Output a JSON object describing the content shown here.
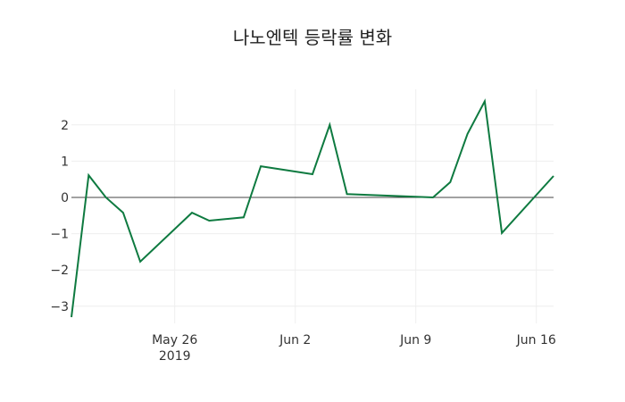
{
  "chart_data": {
    "type": "line",
    "title": "나노엔텍 등락률 변화",
    "xlabel": "",
    "ylabel": "",
    "x": [
      "2019-05-20",
      "2019-05-21",
      "2019-05-22",
      "2019-05-23",
      "2019-05-24",
      "2019-05-27",
      "2019-05-28",
      "2019-05-30",
      "2019-05-31",
      "2019-06-03",
      "2019-06-04",
      "2019-06-05",
      "2019-06-10",
      "2019-06-11",
      "2019-06-12",
      "2019-06-13",
      "2019-06-14",
      "2019-06-17"
    ],
    "series": [
      {
        "name": "등락률",
        "color": "#0e7a40",
        "values": [
          -3.3,
          0.61,
          0.0,
          -0.42,
          -1.77,
          -0.42,
          -0.64,
          -0.55,
          0.86,
          0.64,
          2.0,
          0.09,
          0.0,
          0.42,
          1.75,
          2.65,
          -0.98,
          0.59
        ]
      }
    ],
    "x_ticks": [
      {
        "date": "2019-05-26",
        "label": "May 26",
        "sublabel": "2019"
      },
      {
        "date": "2019-06-02",
        "label": "Jun 2",
        "sublabel": ""
      },
      {
        "date": "2019-06-09",
        "label": "Jun 9",
        "sublabel": ""
      },
      {
        "date": "2019-06-16",
        "label": "Jun 16",
        "sublabel": ""
      }
    ],
    "y_ticks": [
      2,
      1,
      0,
      -1,
      -2,
      -3
    ],
    "y_tick_labels": [
      "2",
      "1",
      "0",
      "−1",
      "−2",
      "−3"
    ],
    "xlim": [
      "2019-05-20",
      "2019-06-17"
    ],
    "ylim": [
      -3.3,
      2.9
    ],
    "grid": true,
    "zero_line": true,
    "legend": null
  }
}
